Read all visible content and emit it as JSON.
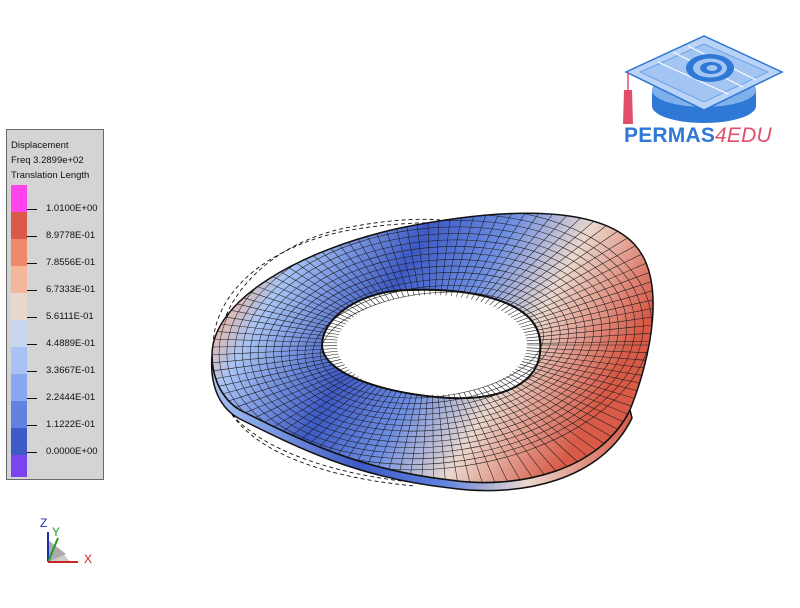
{
  "legend": {
    "title_lines": [
      "Displacement",
      "Freq 3.2899e+02",
      "Translation Length"
    ],
    "levels": [
      {
        "label": "1.0100E+00",
        "color": "#ff44ee"
      },
      {
        "label": "8.9778E-01",
        "color": "#d85a47"
      },
      {
        "label": "7.8556E-01",
        "color": "#ee8a6b"
      },
      {
        "label": "6.7333E-01",
        "color": "#f5b79b"
      },
      {
        "label": "5.6111E-01",
        "color": "#ead7cd"
      },
      {
        "label": "4.4889E-01",
        "color": "#c8d6ef"
      },
      {
        "label": "3.3667E-01",
        "color": "#a8c3f3"
      },
      {
        "label": "2.2444E-01",
        "color": "#88a8ef"
      },
      {
        "label": "1.1222E-01",
        "color": "#5f83df"
      },
      {
        "label": "0.0000E+00",
        "color": "#3d5ac6"
      }
    ],
    "bottom_color": "#7a44f0"
  },
  "logo": {
    "word": "PERMAS",
    "suffix": "4EDU",
    "icon": "graduation-cap-icon"
  },
  "triad": {
    "icon": "coordinate-triad-icon",
    "x_label": "X",
    "y_label": "Y",
    "z_label": "Z"
  },
  "model": {
    "icon": "deformed-ring-mesh",
    "low_color": "#3d5ac6",
    "mid_color": "#ead7cd",
    "high_color": "#d85a47"
  }
}
